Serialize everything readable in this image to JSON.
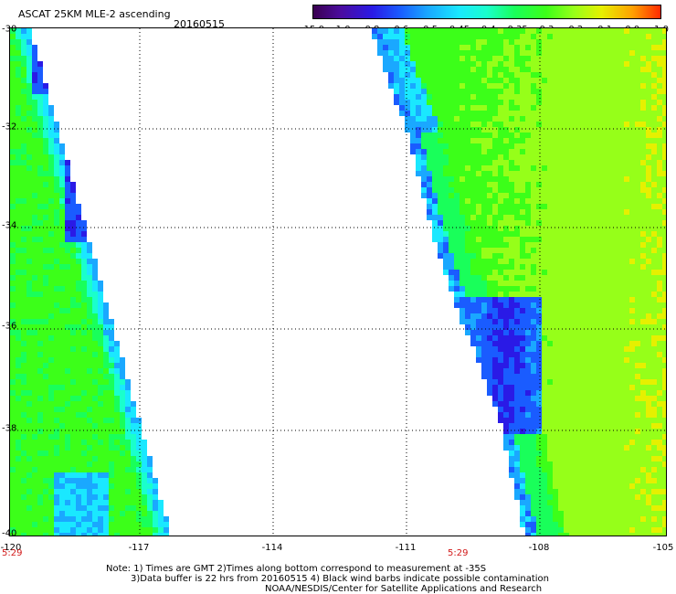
{
  "header": {
    "title": "ASCAT 25KM MLE-2 ascending",
    "date": "20160515"
  },
  "colorbar": {
    "ticks": [
      "-15.0",
      "-1.0",
      "-0.8",
      "-0.6",
      "-0.5",
      "-0.45",
      "-0.4",
      "-0.35",
      "-0.3",
      "-0.2",
      "-0.1",
      "0.0",
      "1.0"
    ],
    "colors": [
      "#3a0050",
      "#4b0ca0",
      "#2a1ae6",
      "#1a5cff",
      "#1aa8ff",
      "#1ae8ff",
      "#1affcc",
      "#19ff5a",
      "#3cff19",
      "#96ff19",
      "#e6f000",
      "#ffa000",
      "#ff2a00"
    ]
  },
  "map": {
    "lat_labels": [
      "-30",
      "-32",
      "-34",
      "-36",
      "-38",
      "-40"
    ],
    "lon_labels": [
      "-120",
      "-117",
      "-114",
      "-111",
      "-108",
      "-105"
    ],
    "time_labels": [
      "5:29",
      "5:29"
    ],
    "lat_range": [
      -40,
      -30
    ],
    "lon_range": [
      -120,
      -105
    ]
  },
  "footer": {
    "line1": "Note: 1) Times are GMT 2)Times along bottom correspond to measurement at -35S",
    "line2": "3)Data buffer is 22 hrs from 20160515 4) Black wind barbs indicate possible contamination",
    "line3": "NOAA/NESDIS/Center for Satellite Applications and Research"
  }
}
